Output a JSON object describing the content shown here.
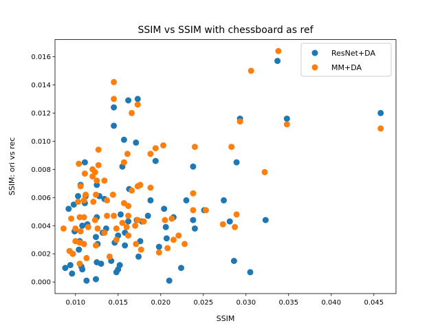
{
  "chart_data": {
    "type": "scatter",
    "title": "SSIM vs SSIM with chessboard as ref",
    "xlabel": "SSIM",
    "ylabel": "SSIM: ori vs rec",
    "xlim": [
      0.0076,
      0.0476
    ],
    "ylim": [
      -0.00082,
      0.01722
    ],
    "xticks": [
      "0.010",
      "0.015",
      "0.020",
      "0.025",
      "0.030",
      "0.035",
      "0.040",
      "0.045"
    ],
    "yticks": [
      "0.000",
      "0.002",
      "0.004",
      "0.006",
      "0.008",
      "0.010",
      "0.012",
      "0.014",
      "0.016"
    ],
    "xtick_values": [
      0.01,
      0.015,
      0.02,
      0.025,
      0.03,
      0.035,
      0.04,
      0.045
    ],
    "ytick_values": [
      0.0,
      0.002,
      0.004,
      0.006,
      0.008,
      0.01,
      0.012,
      0.014,
      0.016
    ],
    "grid": false,
    "legend_position": "top-right",
    "series": [
      {
        "name": "ResNet+DA",
        "color": "#1f77b4",
        "points": [
          [
            0.0337,
            0.0157
          ],
          [
            0.0458,
            0.012
          ],
          [
            0.0348,
            0.0116
          ],
          [
            0.0293,
            0.0116
          ],
          [
            0.0173,
            0.013
          ],
          [
            0.0162,
            0.0129
          ],
          [
            0.0145,
            0.0124
          ],
          [
            0.0145,
            0.0111
          ],
          [
            0.0157,
            0.0101
          ],
          [
            0.0171,
            0.0099
          ],
          [
            0.0194,
            0.0086
          ],
          [
            0.0289,
            0.0085
          ],
          [
            0.0111,
            0.0085
          ],
          [
            0.0238,
            0.0082
          ],
          [
            0.0155,
            0.0082
          ],
          [
            0.0163,
            0.0066
          ],
          [
            0.0106,
            0.0069
          ],
          [
            0.0125,
            0.0069
          ],
          [
            0.0103,
            0.0061
          ],
          [
            0.0112,
            0.0061
          ],
          [
            0.0128,
            0.0061
          ],
          [
            0.0134,
            0.0059
          ],
          [
            0.0188,
            0.0058
          ],
          [
            0.023,
            0.0058
          ],
          [
            0.0274,
            0.0058
          ],
          [
            0.0092,
            0.0052
          ],
          [
            0.0098,
            0.0055
          ],
          [
            0.0111,
            0.0056
          ],
          [
            0.0204,
            0.0052
          ],
          [
            0.0125,
            0.0046
          ],
          [
            0.0153,
            0.0048
          ],
          [
            0.0185,
            0.0047
          ],
          [
            0.0251,
            0.0051
          ],
          [
            0.0281,
            0.0043
          ],
          [
            0.0323,
            0.0044
          ],
          [
            0.0108,
            0.004
          ],
          [
            0.0114,
            0.0041
          ],
          [
            0.0136,
            0.0038
          ],
          [
            0.0162,
            0.0043
          ],
          [
            0.0172,
            0.0044
          ],
          [
            0.0178,
            0.0043
          ],
          [
            0.0206,
            0.0039
          ],
          [
            0.0215,
            0.0046
          ],
          [
            0.0238,
            0.0044
          ],
          [
            0.024,
            0.0038
          ],
          [
            0.0099,
            0.0036
          ],
          [
            0.0105,
            0.0029
          ],
          [
            0.0124,
            0.0032
          ],
          [
            0.0132,
            0.0035
          ],
          [
            0.015,
            0.0033
          ],
          [
            0.0158,
            0.0035
          ],
          [
            0.0176,
            0.0029
          ],
          [
            0.0207,
            0.0031
          ],
          [
            0.0198,
            0.0025
          ],
          [
            0.0097,
            0.002
          ],
          [
            0.0104,
            0.0023
          ],
          [
            0.0126,
            0.0027
          ],
          [
            0.0146,
            0.0028
          ],
          [
            0.0158,
            0.0026
          ],
          [
            0.0174,
            0.0018
          ],
          [
            0.0125,
            0.0014
          ],
          [
            0.013,
            0.0013
          ],
          [
            0.0142,
            0.0015
          ],
          [
            0.0152,
            0.0012
          ],
          [
            0.0088,
            0.001
          ],
          [
            0.0094,
            0.0012
          ],
          [
            0.0107,
            0.0011
          ],
          [
            0.0108,
            0.0009
          ],
          [
            0.0096,
            0.0006
          ],
          [
            0.0148,
            0.0007
          ],
          [
            0.015,
            0.0009
          ],
          [
            0.0113,
            0.0001
          ],
          [
            0.0124,
            0.0002
          ],
          [
            0.021,
            0.0001
          ],
          [
            0.0224,
            0.001
          ],
          [
            0.0286,
            0.0015
          ],
          [
            0.0305,
            0.0007
          ]
        ]
      },
      {
        "name": "MM+DA",
        "color": "#ff7f0e",
        "points": [
          [
            0.0338,
            0.0164
          ],
          [
            0.0306,
            0.015
          ],
          [
            0.0145,
            0.0142
          ],
          [
            0.0145,
            0.013
          ],
          [
            0.0173,
            0.0126
          ],
          [
            0.0166,
            0.012
          ],
          [
            0.0348,
            0.0112
          ],
          [
            0.0293,
            0.0114
          ],
          [
            0.0458,
            0.0109
          ],
          [
            0.0203,
            0.0097
          ],
          [
            0.0194,
            0.0095
          ],
          [
            0.024,
            0.0096
          ],
          [
            0.0283,
            0.0096
          ],
          [
            0.0127,
            0.0094
          ],
          [
            0.0188,
            0.0091
          ],
          [
            0.0161,
            0.0091
          ],
          [
            0.0104,
            0.0084
          ],
          [
            0.0127,
            0.0083
          ],
          [
            0.0157,
            0.0085
          ],
          [
            0.012,
            0.008
          ],
          [
            0.0111,
            0.0077
          ],
          [
            0.0123,
            0.0078
          ],
          [
            0.0125,
            0.0072
          ],
          [
            0.0134,
            0.0072
          ],
          [
            0.012,
            0.0075
          ],
          [
            0.0322,
            0.0078
          ],
          [
            0.0106,
            0.0068
          ],
          [
            0.0176,
            0.0069
          ],
          [
            0.0188,
            0.0067
          ],
          [
            0.0173,
            0.0068
          ],
          [
            0.0166,
            0.0065
          ],
          [
            0.0238,
            0.0063
          ],
          [
            0.0144,
            0.0062
          ],
          [
            0.0124,
            0.0062
          ],
          [
            0.0112,
            0.0062
          ],
          [
            0.0103,
            0.0057
          ],
          [
            0.011,
            0.0058
          ],
          [
            0.0121,
            0.0057
          ],
          [
            0.0137,
            0.0058
          ],
          [
            0.0157,
            0.0056
          ],
          [
            0.0162,
            0.0054
          ],
          [
            0.0238,
            0.0051
          ],
          [
            0.0253,
            0.0051
          ],
          [
            0.0095,
            0.0045
          ],
          [
            0.0105,
            0.0046
          ],
          [
            0.011,
            0.0046
          ],
          [
            0.0123,
            0.0044
          ],
          [
            0.0137,
            0.0047
          ],
          [
            0.0145,
            0.0047
          ],
          [
            0.0162,
            0.0047
          ],
          [
            0.0173,
            0.0044
          ],
          [
            0.018,
            0.0043
          ],
          [
            0.0205,
            0.0044
          ],
          [
            0.0213,
            0.0045
          ],
          [
            0.0273,
            0.0041
          ],
          [
            0.0287,
            0.0039
          ],
          [
            0.0289,
            0.0048
          ],
          [
            0.0086,
            0.0038
          ],
          [
            0.01,
            0.0038
          ],
          [
            0.0106,
            0.0036
          ],
          [
            0.0115,
            0.0039
          ],
          [
            0.0126,
            0.0038
          ],
          [
            0.0134,
            0.0035
          ],
          [
            0.0148,
            0.0038
          ],
          [
            0.0155,
            0.0042
          ],
          [
            0.016,
            0.0039
          ],
          [
            0.017,
            0.004
          ],
          [
            0.01,
            0.0029
          ],
          [
            0.0105,
            0.0028
          ],
          [
            0.011,
            0.0027
          ],
          [
            0.0124,
            0.0026
          ],
          [
            0.0148,
            0.003
          ],
          [
            0.0162,
            0.0033
          ],
          [
            0.0171,
            0.0027
          ],
          [
            0.0215,
            0.003
          ],
          [
            0.0221,
            0.0033
          ],
          [
            0.0228,
            0.0027
          ],
          [
            0.0198,
            0.0021
          ],
          [
            0.0208,
            0.0024
          ],
          [
            0.0177,
            0.0023
          ],
          [
            0.0093,
            0.0022
          ],
          [
            0.0097,
            0.002
          ],
          [
            0.0105,
            0.0013
          ],
          [
            0.0113,
            0.0017
          ],
          [
            0.014,
            0.0018
          ]
        ]
      }
    ]
  }
}
